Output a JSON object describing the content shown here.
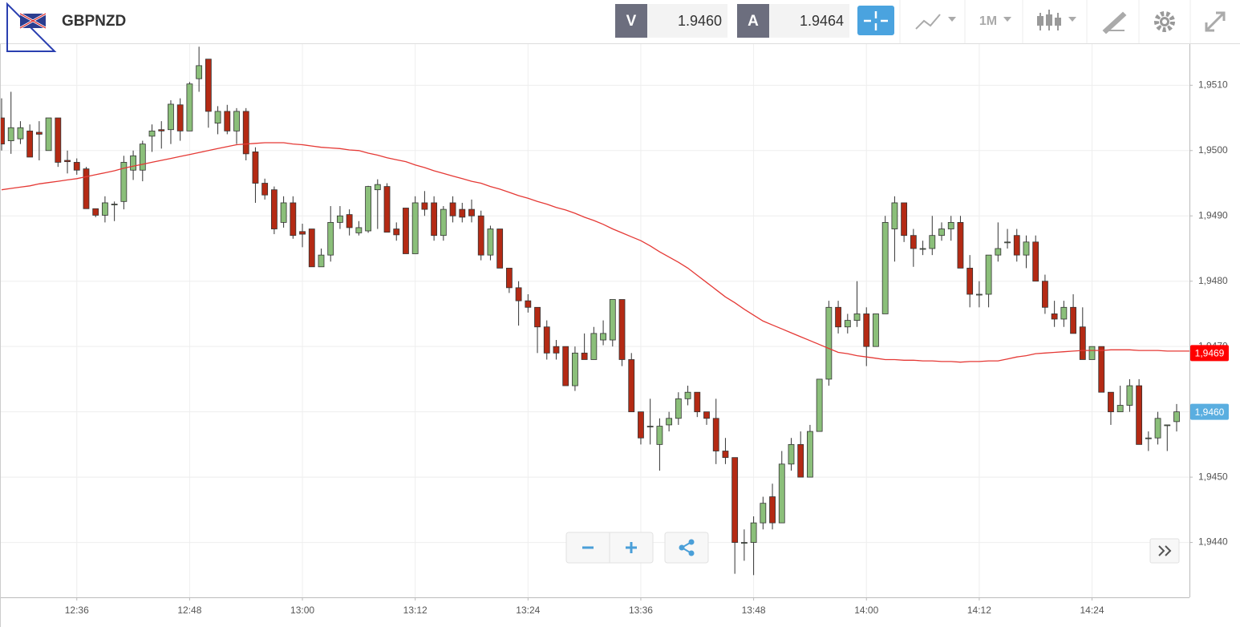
{
  "header": {
    "symbol": "GBPNZD",
    "bid_label": "V",
    "bid": "1.9460",
    "ask_label": "A",
    "ask": "1.9464",
    "timeframe": "1M"
  },
  "chart_data": {
    "type": "candlestick",
    "up_color": "#8bbf7a",
    "down_color": "#b42a14",
    "categories": [
      null,
      null,
      null,
      null,
      null,
      null,
      null,
      null,
      "12:36",
      null,
      null,
      null,
      null,
      null,
      null,
      null,
      null,
      null,
      null,
      null,
      "12:48",
      null,
      null,
      null,
      null,
      null,
      null,
      null,
      null,
      null,
      null,
      null,
      "13:00",
      null,
      null,
      null,
      null,
      null,
      null,
      null,
      null,
      null,
      null,
      null,
      "13:12",
      null,
      null,
      null,
      null,
      null,
      null,
      null,
      null,
      null,
      null,
      null,
      "13:24",
      null,
      null,
      null,
      null,
      null,
      null,
      null,
      null,
      null,
      null,
      null,
      "13:36",
      null,
      null,
      null,
      null,
      null,
      null,
      null,
      null,
      null,
      null,
      null,
      "13:48",
      null,
      null,
      null,
      null,
      null,
      null,
      null,
      null,
      null,
      null,
      null,
      "14:00",
      null,
      null,
      null,
      null,
      null,
      null,
      null,
      null,
      null,
      null,
      null,
      "14:12",
      null,
      null,
      null,
      null,
      null,
      null,
      null,
      null,
      null,
      null,
      null,
      "14:24",
      null,
      null,
      null,
      null,
      null,
      null,
      null,
      null,
      null
    ],
    "open": [
      1.9505,
      1.95015,
      1.95018,
      1.9503,
      1.95028,
      1.95,
      1.9505,
      1.94985,
      1.94982,
      1.94972,
      1.94911,
      1.94901,
      1.94918,
      1.94922,
      1.9497,
      1.9497,
      1.95022,
      1.95032,
      1.95032,
      1.9507,
      1.9503,
      1.9511,
      1.9514,
      1.95042,
      1.9506,
      1.9503,
      1.9506,
      1.94998,
      1.9495,
      1.9494,
      1.9489,
      1.9492,
      1.94876,
      1.9488,
      1.94822,
      1.9484,
      1.9489,
      1.94902,
      1.94874,
      1.94877,
      1.9494,
      1.94945,
      1.9488,
      1.94912,
      1.94842,
      1.9492,
      1.9492,
      1.9487,
      1.9492,
      1.9491,
      1.9491,
      1.949,
      1.9484,
      1.9488,
      1.9482,
      1.9479,
      1.9477,
      1.9476,
      1.9473,
      1.947,
      1.947,
      1.9464,
      1.9469,
      1.9468,
      1.9471,
      1.9471,
      1.94772,
      1.9468,
      1.946,
      1.94578,
      1.9455,
      1.9458,
      1.9459,
      1.9462,
      1.9463,
      1.946,
      1.9459,
      1.9454,
      1.9453,
      1.944,
      1.944,
      1.9443,
      1.9447,
      1.9443,
      1.9452,
      1.9455,
      1.945,
      1.9457,
      1.9465,
      1.9476,
      1.9473,
      1.9474,
      1.9475,
      1.947,
      1.9475,
      1.9488,
      1.9492,
      1.9487,
      1.9485,
      1.9485,
      1.9487,
      1.9488,
      1.9489,
      1.9482,
      1.9478,
      1.9478,
      1.9484,
      1.9486,
      1.9487,
      1.9484,
      1.9486,
      1.948,
      1.9475,
      1.94742,
      1.9476,
      1.9473,
      1.9468,
      1.947,
      1.9463,
      1.946,
      1.9461,
      1.9464,
      1.9456,
      1.9456,
      1.9458,
      1.94585
    ],
    "high": [
      1.9508,
      1.9509,
      1.95045,
      1.9504,
      1.95045,
      1.9505,
      1.9505,
      1.95,
      1.94988,
      1.94975,
      1.94911,
      1.9493,
      1.94922,
      1.94992,
      1.95,
      1.95015,
      1.9504,
      1.95045,
      1.95077,
      1.9508,
      1.95105,
      1.95159,
      1.9514,
      1.95068,
      1.9507,
      1.95065,
      1.95065,
      1.95005,
      1.94957,
      1.94945,
      1.9493,
      1.9493,
      1.94888,
      1.9488,
      1.9485,
      1.94915,
      1.94915,
      1.9491,
      1.94892,
      1.94946,
      1.94956,
      1.9495,
      1.9489,
      1.94912,
      1.9493,
      1.94938,
      1.9493,
      1.94915,
      1.9493,
      1.9492,
      1.94925,
      1.94908,
      1.94885,
      1.9488,
      1.9482,
      1.948,
      1.9478,
      1.9476,
      1.9474,
      1.9471,
      1.947,
      1.947,
      1.9472,
      1.9473,
      1.9474,
      1.94772,
      1.94772,
      1.9469,
      1.946,
      1.9462,
      1.9459,
      1.946,
      1.9463,
      1.9464,
      1.9463,
      1.946,
      1.9462,
      1.9456,
      1.9453,
      1.9442,
      1.9444,
      1.9447,
      1.9449,
      1.9454,
      1.9456,
      1.9457,
      1.9458,
      1.9465,
      1.9477,
      1.9477,
      1.9475,
      1.948,
      1.9476,
      1.9475,
      1.949,
      1.9493,
      1.9492,
      1.9488,
      1.94862,
      1.949,
      1.9489,
      1.949,
      1.949,
      1.9484,
      1.948,
      1.9484,
      1.9489,
      1.9488,
      1.9488,
      1.9487,
      1.9487,
      1.9481,
      1.9477,
      1.9477,
      1.9478,
      1.9476,
      1.947,
      1.947,
      1.9463,
      1.9464,
      1.9465,
      1.9465,
      1.9457,
      1.946,
      1.9458,
      1.94612
    ],
    "low": [
      1.95,
      1.94995,
      1.9501,
      1.9499,
      1.94985,
      1.95,
      1.94975,
      1.94965,
      1.94963,
      1.94911,
      1.94898,
      1.9489,
      1.94892,
      1.9491,
      1.94955,
      1.94953,
      1.94998,
      1.95003,
      1.9501,
      1.95015,
      1.9503,
      1.9509,
      1.95035,
      1.95025,
      1.95025,
      1.9501,
      1.94985,
      1.9492,
      1.94925,
      1.94872,
      1.94882,
      1.94865,
      1.94852,
      1.94822,
      1.94822,
      1.9483,
      1.9488,
      1.9487,
      1.9487,
      1.94874,
      1.9488,
      1.94875,
      1.94862,
      1.94842,
      1.94842,
      1.949,
      1.94862,
      1.94862,
      1.9489,
      1.9489,
      1.9489,
      1.94832,
      1.94832,
      1.9482,
      1.94782,
      1.94732,
      1.94752,
      1.9469,
      1.9468,
      1.9468,
      1.9464,
      1.94632,
      1.9468,
      1.9468,
      1.94702,
      1.947,
      1.9467,
      1.946,
      1.9455,
      1.9455,
      1.9451,
      1.9457,
      1.9458,
      1.9461,
      1.94592,
      1.9458,
      1.9452,
      1.9452,
      1.94352,
      1.94372,
      1.9435,
      1.9442,
      1.9442,
      1.9443,
      1.9451,
      1.945,
      1.945,
      1.9457,
      1.9464,
      1.9472,
      1.9472,
      1.9473,
      1.9467,
      1.947,
      1.9475,
      1.9483,
      1.9486,
      1.94822,
      1.9484,
      1.9484,
      1.94862,
      1.94862,
      1.9482,
      1.9476,
      1.9476,
      1.9476,
      1.9483,
      1.9485,
      1.9483,
      1.9482,
      1.948,
      1.9475,
      1.9473,
      1.9473,
      1.9472,
      1.9468,
      1.9468,
      1.9463,
      1.9458,
      1.946,
      1.946,
      1.9455,
      1.9454,
      1.9455,
      1.9454,
      1.9457
    ],
    "close": [
      1.9501,
      1.95035,
      1.95035,
      1.9499,
      1.95025,
      1.9505,
      1.94982,
      1.94983,
      1.9497,
      1.94911,
      1.94901,
      1.9492,
      1.94918,
      1.94982,
      1.94992,
      1.9501,
      1.9503,
      1.9503,
      1.95071,
      1.9503,
      1.95102,
      1.9513,
      1.9506,
      1.9506,
      1.9503,
      1.9506,
      1.94995,
      1.9495,
      1.94932,
      1.9488,
      1.9492,
      1.9487,
      1.94872,
      1.94822,
      1.9484,
      1.9489,
      1.949,
      1.94882,
      1.94882,
      1.94945,
      1.94948,
      1.94875,
      1.94871,
      1.94842,
      1.9492,
      1.9491,
      1.9487,
      1.9491,
      1.949,
      1.94898,
      1.949,
      1.9484,
      1.9488,
      1.9482,
      1.9479,
      1.9477,
      1.9476,
      1.9473,
      1.9469,
      1.9469,
      1.9464,
      1.9469,
      1.9468,
      1.9472,
      1.9472,
      1.94772,
      1.9468,
      1.946,
      1.9456,
      1.94578,
      1.94578,
      1.9459,
      1.9462,
      1.9463,
      1.946,
      1.9459,
      1.9454,
      1.9453,
      1.944,
      1.944,
      1.9443,
      1.9446,
      1.9443,
      1.9452,
      1.9455,
      1.945,
      1.9457,
      1.9465,
      1.9476,
      1.9473,
      1.9474,
      1.9475,
      1.947,
      1.9475,
      1.9489,
      1.9492,
      1.9487,
      1.9485,
      1.9485,
      1.9487,
      1.9488,
      1.9489,
      1.9482,
      1.9478,
      1.9478,
      1.9484,
      1.9485,
      1.9486,
      1.9484,
      1.9486,
      1.948,
      1.9476,
      1.94742,
      1.9476,
      1.9472,
      1.9468,
      1.947,
      1.9463,
      1.946,
      1.9461,
      1.9464,
      1.9455,
      1.9456,
      1.9459,
      1.9458,
      1.946
    ],
    "moving_average": {
      "color": "#e53935",
      "values": [
        1.9494,
        1.94942,
        1.94944,
        1.94946,
        1.94949,
        1.94951,
        1.94953,
        1.94955,
        1.94957,
        1.9496,
        1.94963,
        1.94966,
        1.94969,
        1.94973,
        1.94976,
        1.94979,
        1.94982,
        1.94985,
        1.94988,
        1.94991,
        1.94994,
        1.94997,
        1.95,
        1.95003,
        1.95006,
        1.95009,
        1.9501,
        1.95011,
        1.95012,
        1.95012,
        1.95012,
        1.9501,
        1.95009,
        1.95007,
        1.95005,
        1.95004,
        1.95003,
        1.95001,
        1.95,
        1.94996,
        1.94993,
        1.94989,
        1.94986,
        1.94983,
        1.94978,
        1.94974,
        1.94969,
        1.94965,
        1.94961,
        1.94957,
        1.94953,
        1.9495,
        1.94945,
        1.94941,
        1.94936,
        1.94931,
        1.94927,
        1.94922,
        1.94918,
        1.94913,
        1.94909,
        1.94904,
        1.94898,
        1.94893,
        1.94887,
        1.9488,
        1.94874,
        1.94868,
        1.94862,
        1.94854,
        1.94845,
        1.94837,
        1.94829,
        1.9482,
        1.94809,
        1.94798,
        1.94787,
        1.94776,
        1.94767,
        1.94757,
        1.94748,
        1.94739,
        1.94733,
        1.94727,
        1.94721,
        1.94715,
        1.94709,
        1.94703,
        1.94697,
        1.94691,
        1.94689,
        1.94686,
        1.94684,
        1.94682,
        1.9468,
        1.9468,
        1.94679,
        1.94679,
        1.94678,
        1.94678,
        1.94677,
        1.94677,
        1.94676,
        1.94677,
        1.94677,
        1.94678,
        1.94678,
        1.94681,
        1.94684,
        1.94686,
        1.94689,
        1.9469,
        1.94691,
        1.94692,
        1.94693,
        1.94694,
        1.94694,
        1.94694,
        1.94695,
        1.94695,
        1.94695,
        1.94694,
        1.94694,
        1.94694,
        1.94693,
        1.94693
      ]
    },
    "price_labels": [
      {
        "value": 1.9469,
        "label": "1,9469",
        "color": "#ff0000"
      },
      {
        "value": 1.946,
        "label": "1,9460",
        "color": "#5aaee0"
      }
    ],
    "ylim": [
      1.94316,
      1.95163
    ],
    "yticks": [
      {
        "value": 1.951,
        "label": "1,9510"
      },
      {
        "value": 1.95,
        "label": "1,9500"
      },
      {
        "value": 1.949,
        "label": "1,9490"
      },
      {
        "value": 1.948,
        "label": "1,9480"
      },
      {
        "value": 1.947,
        "label": "1,9470"
      },
      {
        "value": 1.946,
        "label": "1,9460"
      },
      {
        "value": 1.945,
        "label": "1,9450"
      },
      {
        "value": 1.944,
        "label": "1,9440"
      }
    ],
    "grid": true
  }
}
